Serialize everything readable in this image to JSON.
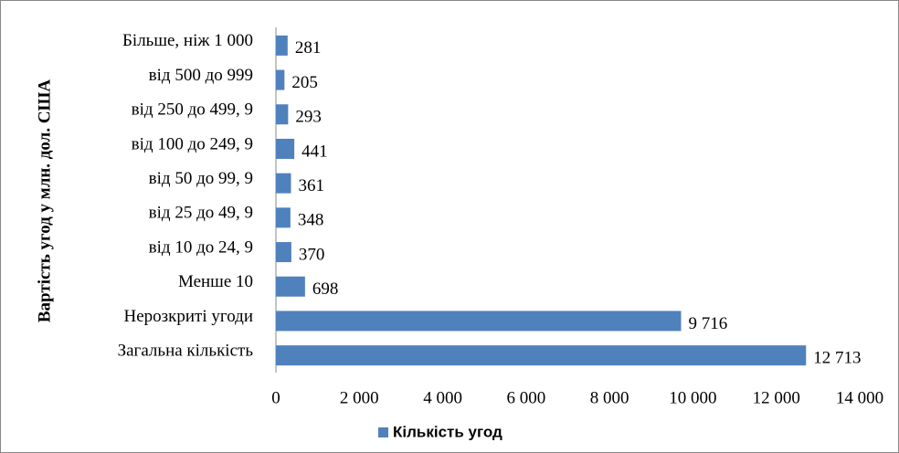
{
  "chart_data": {
    "type": "barh",
    "y_label": "Вартість угод у млн. дол. США",
    "categories": [
      "Більше, ніж 1 000",
      "від 500 до 999",
      "від 250 до 499, 9",
      "від 100 до 249, 9",
      "від 50 до 99, 9",
      "від 25 до 49, 9",
      "від 10 до 24, 9",
      "Менше 10",
      "Нерозкриті угоди",
      "Загальна кількість"
    ],
    "series": [
      {
        "name": "Кількість угод",
        "color": "#4f81bd",
        "values": [
          281,
          205,
          293,
          441,
          361,
          348,
          370,
          698,
          9716,
          12713
        ],
        "value_labels": [
          "281",
          "205",
          "293",
          "441",
          "361",
          "348",
          "370",
          "698",
          "9 716",
          "12 713"
        ]
      }
    ],
    "xlim": [
      0,
      14000
    ],
    "xticks": [
      0,
      {
        "value": 2000,
        "label": "2 000"
      },
      {
        "value": 4000,
        "label": "4 000"
      },
      {
        "value": 6000,
        "label": "6 000"
      },
      {
        "value": 8000,
        "label": "8 000"
      },
      {
        "value": 10000,
        "label": "10 000"
      },
      {
        "value": 12000,
        "label": "12 000"
      },
      {
        "value": 14000,
        "label": "14 000"
      }
    ],
    "legend": "bottom"
  }
}
